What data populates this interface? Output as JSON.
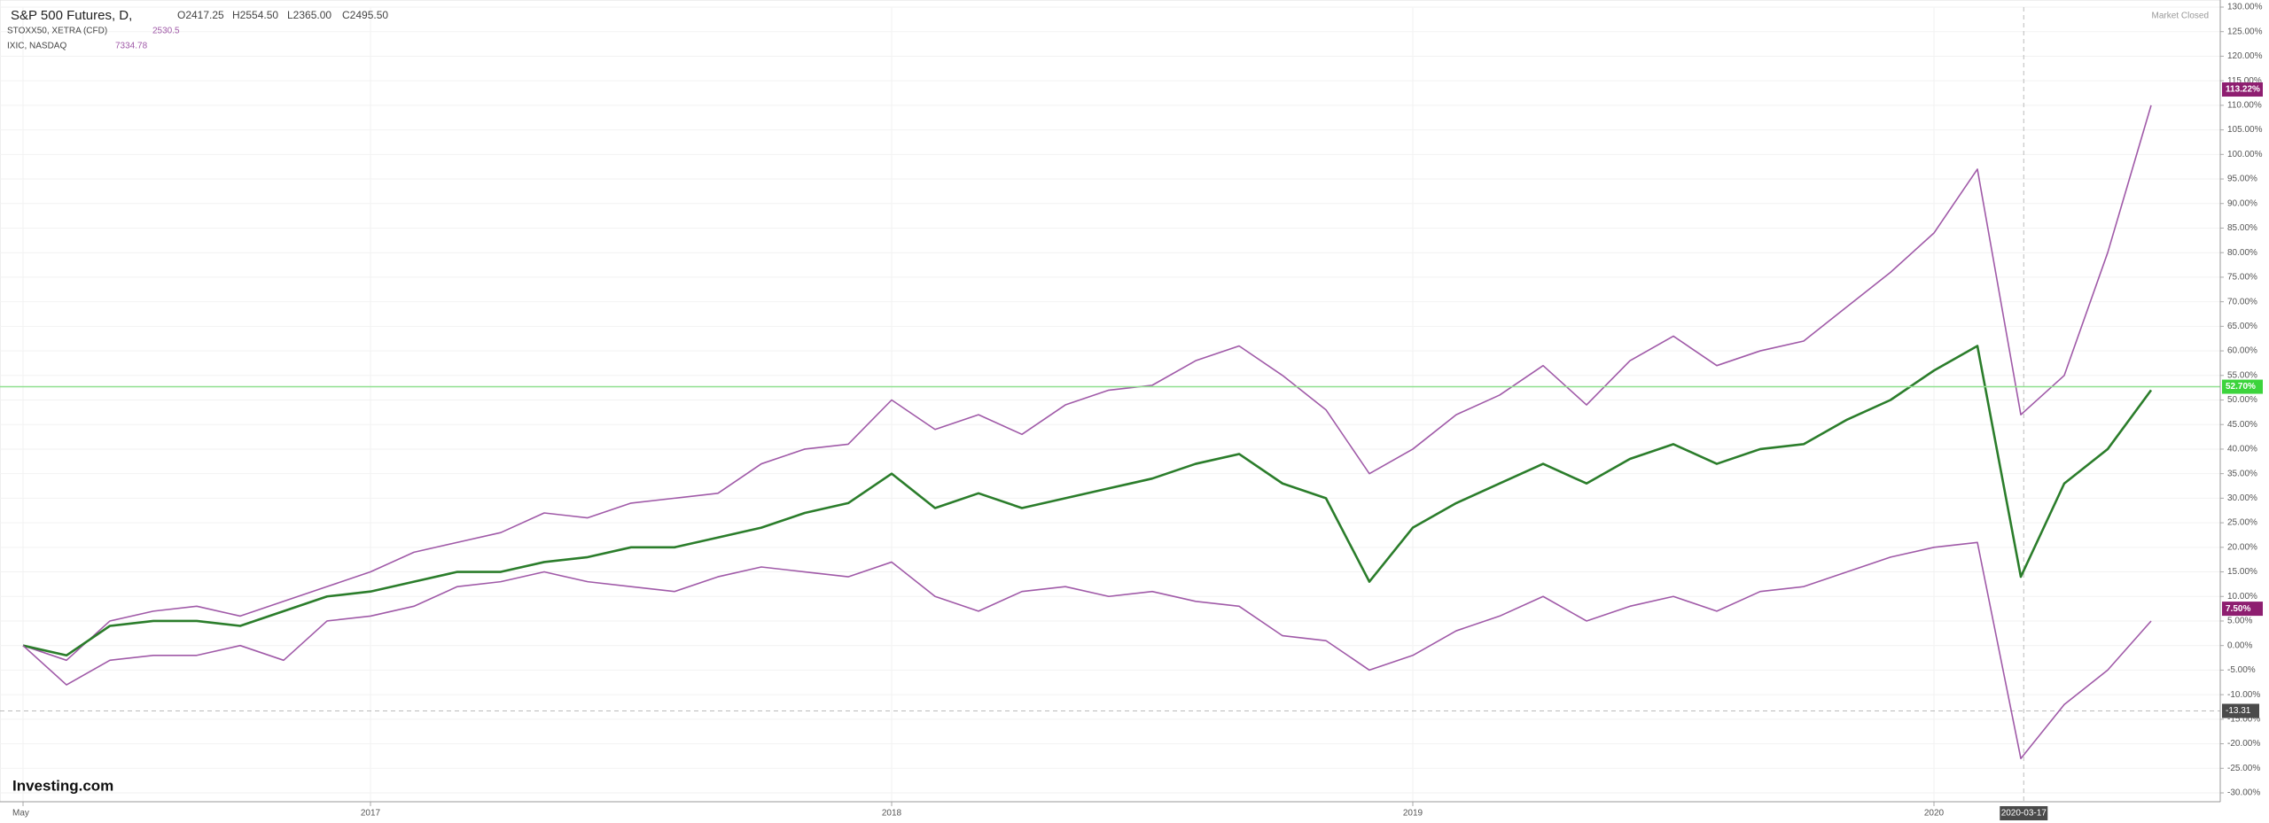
{
  "chart_data": {
    "type": "line",
    "header": {
      "main": {
        "name": "S&P 500 Futures, D,",
        "open": "O2417.25",
        "high": "H2554.50",
        "low": "L2365.00",
        "close": "C2495.50"
      },
      "status": "Market Closed",
      "logo": "Investing.com"
    },
    "x": [
      "2016-05",
      "2016-06",
      "2016-07",
      "2016-08",
      "2016-09",
      "2016-10",
      "2016-11",
      "2016-12",
      "2017-01",
      "2017-02",
      "2017-03",
      "2017-04",
      "2017-05",
      "2017-06",
      "2017-07",
      "2017-08",
      "2017-09",
      "2017-10",
      "2017-11",
      "2017-12",
      "2018-01",
      "2018-02",
      "2018-03",
      "2018-04",
      "2018-05",
      "2018-06",
      "2018-07",
      "2018-08",
      "2018-09",
      "2018-10",
      "2018-11",
      "2018-12",
      "2019-01",
      "2019-02",
      "2019-03",
      "2019-04",
      "2019-05",
      "2019-06",
      "2019-07",
      "2019-08",
      "2019-09",
      "2019-10",
      "2019-11",
      "2019-12",
      "2020-01",
      "2020-02",
      "2020-03",
      "2020-04",
      "2020-05",
      "2020-06"
    ],
    "xticks": [
      {
        "value": "2016-05",
        "label": "May"
      },
      {
        "value": "2017-01",
        "label": "2017"
      },
      {
        "value": "2018-01",
        "label": "2018"
      },
      {
        "value": "2019-01",
        "label": "2019"
      },
      {
        "value": "2020-01",
        "label": "2020"
      }
    ],
    "series": [
      {
        "name": "IXIC, NASDAQ",
        "quote": 7334.78,
        "color": "#a05aa8",
        "values": [
          0,
          -3,
          5,
          7,
          8,
          6,
          9,
          12,
          15,
          19,
          21,
          23,
          27,
          26,
          29,
          30,
          31,
          37,
          40,
          41,
          50,
          44,
          47,
          43,
          49,
          52,
          53,
          58,
          61,
          55,
          48,
          35,
          40,
          47,
          51,
          57,
          49,
          58,
          63,
          57,
          60,
          62,
          69,
          76,
          84,
          97,
          47,
          55,
          80,
          110
        ],
        "last_value": {
          "value": 113.22,
          "label": "113.22%"
        },
        "badge_color": "#8e1e70"
      },
      {
        "name": "S&P 500 Futures, D,",
        "color": "#2b7d2b",
        "values": [
          0,
          -2,
          4,
          5,
          5,
          4,
          7,
          10,
          11,
          13,
          15,
          15,
          17,
          18,
          20,
          20,
          22,
          24,
          27,
          29,
          35,
          28,
          31,
          28,
          30,
          32,
          34,
          37,
          39,
          33,
          30,
          13,
          24,
          29,
          33,
          37,
          33,
          38,
          41,
          37,
          40,
          41,
          46,
          50,
          56,
          61,
          14,
          33,
          40,
          52
        ],
        "last_value": {
          "value": 52.7,
          "label": "52.70%"
        },
        "badge_color": "#3cd43c",
        "price_line": true
      },
      {
        "name": "STOXX50, XETRA (CFD)",
        "quote": 2530.5,
        "color": "#a05aa8",
        "values": [
          0,
          -8,
          -3,
          -2,
          -2,
          0,
          -3,
          5,
          6,
          8,
          12,
          13,
          15,
          13,
          12,
          11,
          14,
          16,
          15,
          14,
          17,
          10,
          7,
          11,
          12,
          10,
          11,
          9,
          8,
          2,
          1,
          -5,
          -2,
          3,
          6,
          10,
          5,
          8,
          10,
          7,
          11,
          12,
          15,
          18,
          20,
          21,
          -23,
          -12,
          -5,
          5
        ],
        "last_value": {
          "value": 7.5,
          "label": "7.50%"
        },
        "badge_color": "#8e1e70"
      }
    ],
    "crosshair": {
      "x": "2020-03-17",
      "y": -13.31
    },
    "ylim": [
      -30,
      130
    ],
    "yticks": [
      {
        "value": -30,
        "label": "-30.00%"
      },
      {
        "value": -25,
        "label": "-25.00%"
      },
      {
        "value": -20,
        "label": "-20.00%"
      },
      {
        "value": -15,
        "label": "-15.00%"
      },
      {
        "value": -10,
        "label": "-10.00%"
      },
      {
        "value": -5,
        "label": "-5.00%"
      },
      {
        "value": 0,
        "label": "0.00%"
      },
      {
        "value": 5,
        "label": "5.00%"
      },
      {
        "value": 10,
        "label": "10.00%"
      },
      {
        "value": 15,
        "label": "15.00%"
      },
      {
        "value": 20,
        "label": "20.00%"
      },
      {
        "value": 25,
        "label": "25.00%"
      },
      {
        "value": 30,
        "label": "30.00%"
      },
      {
        "value": 35,
        "label": "35.00%"
      },
      {
        "value": 40,
        "label": "40.00%"
      },
      {
        "value": 45,
        "label": "45.00%"
      },
      {
        "value": 50,
        "label": "50.00%"
      },
      {
        "value": 55,
        "label": "55.00%"
      },
      {
        "value": 60,
        "label": "60.00%"
      },
      {
        "value": 65,
        "label": "65.00%"
      },
      {
        "value": 70,
        "label": "70.00%"
      },
      {
        "value": 75,
        "label": "75.00%"
      },
      {
        "value": 80,
        "label": "80.00%"
      },
      {
        "value": 85,
        "label": "85.00%"
      },
      {
        "value": 90,
        "label": "90.00%"
      },
      {
        "value": 95,
        "label": "95.00%"
      },
      {
        "value": 100,
        "label": "100.00%"
      },
      {
        "value": 105,
        "label": "105.00%"
      },
      {
        "value": 110,
        "label": "110.00%"
      },
      {
        "value": 115,
        "label": "115.00%"
      },
      {
        "value": 120,
        "label": "120.00%"
      },
      {
        "value": 125,
        "label": "125.00%"
      },
      {
        "value": 130,
        "label": "130.00%"
      }
    ],
    "grid": true
  }
}
